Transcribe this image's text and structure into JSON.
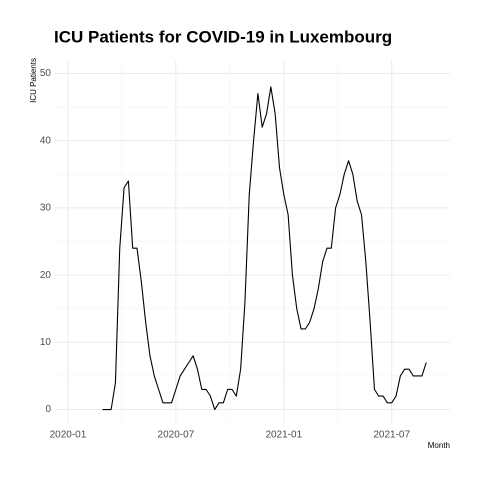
{
  "chart_data": {
    "type": "line",
    "title": "ICU Patients for COVID-19 in Luxembourg",
    "y_label": "ICU Patients",
    "x_label": "Month",
    "color": "#000000",
    "grid": true,
    "x": [
      2020.16,
      2020.18,
      2020.2,
      2020.22,
      2020.24,
      2020.26,
      2020.28,
      2020.3,
      2020.32,
      2020.34,
      2020.36,
      2020.38,
      2020.4,
      2020.42,
      2020.44,
      2020.46,
      2020.48,
      2020.5,
      2020.52,
      2020.54,
      2020.56,
      2020.58,
      2020.6,
      2020.62,
      2020.64,
      2020.66,
      2020.68,
      2020.7,
      2020.72,
      2020.74,
      2020.76,
      2020.78,
      2020.8,
      2020.82,
      2020.84,
      2020.86,
      2020.88,
      2020.9,
      2020.92,
      2020.94,
      2020.96,
      2020.98,
      2021.0,
      2021.02,
      2021.04,
      2021.06,
      2021.08,
      2021.1,
      2021.12,
      2021.14,
      2021.16,
      2021.18,
      2021.2,
      2021.22,
      2021.24,
      2021.26,
      2021.28,
      2021.3,
      2021.32,
      2021.34,
      2021.36,
      2021.38,
      2021.4,
      2021.42,
      2021.44,
      2021.46,
      2021.48,
      2021.5,
      2021.52,
      2021.54,
      2021.56,
      2021.58,
      2021.6,
      2021.62,
      2021.64,
      2021.66
    ],
    "values": [
      0,
      0,
      0,
      4,
      24,
      33,
      34,
      24,
      24,
      19,
      13,
      8,
      5,
      3,
      1,
      1,
      1,
      3,
      5,
      6,
      7,
      8,
      6,
      3,
      3,
      2,
      0,
      1,
      1,
      3,
      3,
      2,
      6,
      16,
      32,
      40,
      47,
      42,
      44,
      48,
      44,
      36,
      32,
      29,
      20,
      15,
      12,
      12,
      13,
      15,
      18,
      22,
      24,
      24,
      30,
      32,
      35,
      37,
      35,
      31,
      29,
      22,
      13,
      3,
      2,
      2,
      1,
      1,
      2,
      5,
      6,
      6,
      5,
      5,
      5,
      7
    ],
    "xlim": [
      2019.94,
      2021.77
    ],
    "xticks": [
      {
        "value": 2020,
        "label": "2020-01"
      },
      {
        "value": 2020.5,
        "label": "2020-07"
      },
      {
        "value": 2021,
        "label": "2021-01"
      },
      {
        "value": 2021.5,
        "label": "2021-07"
      }
    ],
    "ylim": [
      -2,
      52
    ],
    "yticks": [
      0,
      10,
      20,
      30,
      40,
      50
    ]
  }
}
